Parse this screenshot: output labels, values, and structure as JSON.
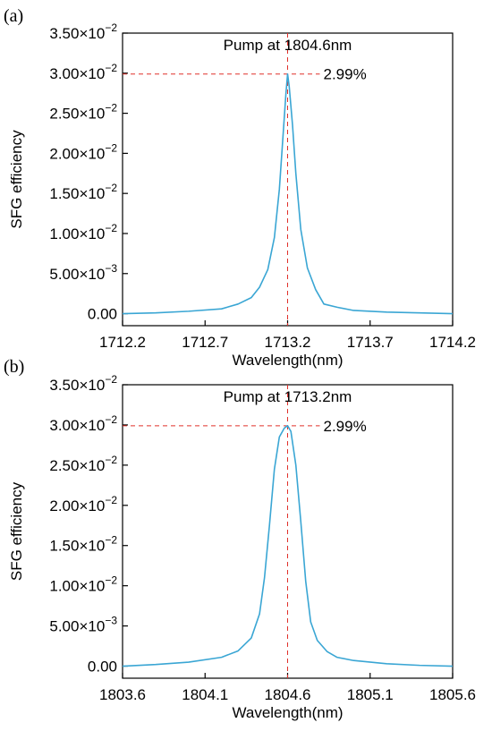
{
  "chart_data": [
    {
      "panel_label": "(a)",
      "type": "line",
      "xlabel": "Wavelength(nm)",
      "ylabel": "SFG efficiency",
      "xlim": [
        1712.2,
        1714.2
      ],
      "ylim": [
        -0.0015,
        0.035
      ],
      "x_ticks": [
        {
          "v": 1712.2,
          "label": "1712.2"
        },
        {
          "v": 1712.7,
          "label": "1712.7"
        },
        {
          "v": 1713.2,
          "label": "1713.2"
        },
        {
          "v": 1713.7,
          "label": "1713.7"
        },
        {
          "v": 1714.2,
          "label": "1714.2"
        }
      ],
      "y_ticks": [
        {
          "v": 0,
          "mant": "0.00",
          "exp": ""
        },
        {
          "v": 0.005,
          "mant": "5.00×10",
          "exp": "−3"
        },
        {
          "v": 0.01,
          "mant": "1.00×10",
          "exp": "−2"
        },
        {
          "v": 0.015,
          "mant": "1.50×10",
          "exp": "−2"
        },
        {
          "v": 0.02,
          "mant": "2.00×10",
          "exp": "−2"
        },
        {
          "v": 0.025,
          "mant": "2.50×10",
          "exp": "−2"
        },
        {
          "v": 0.03,
          "mant": "3.00×10",
          "exp": "−2"
        },
        {
          "v": 0.035,
          "mant": "3.50×10",
          "exp": "−2"
        }
      ],
      "annotation_title": "Pump at 1804.6nm",
      "peak_label": "2.99%",
      "peak": {
        "x": 1713.2,
        "y": 0.0299
      },
      "line_color": "#3aa6d4",
      "ref_color": "#e0302a",
      "series": [
        {
          "x": [
            1712.2,
            1712.4,
            1712.6,
            1712.8,
            1712.9,
            1712.98,
            1713.03,
            1713.08,
            1713.12,
            1713.15,
            1713.17,
            1713.19,
            1713.2,
            1713.21,
            1713.23,
            1713.25,
            1713.28,
            1713.32,
            1713.37,
            1713.42,
            1713.5,
            1713.6,
            1713.8,
            1714.0,
            1714.2
          ],
          "y": [
            0.0,
            0.0001,
            0.0003,
            0.0006,
            0.0012,
            0.002,
            0.0033,
            0.0055,
            0.0095,
            0.0155,
            0.0215,
            0.0275,
            0.0299,
            0.0283,
            0.0235,
            0.0175,
            0.0105,
            0.0057,
            0.003,
            0.0012,
            0.0008,
            0.0004,
            0.0002,
            0.0001,
            0.0
          ]
        }
      ]
    },
    {
      "panel_label": "(b)",
      "type": "line",
      "xlabel": "Wavelength(nm)",
      "ylabel": "SFG efficiency",
      "xlim": [
        1803.6,
        1805.6
      ],
      "ylim": [
        -0.0015,
        0.035
      ],
      "x_ticks": [
        {
          "v": 1803.6,
          "label": "1803.6"
        },
        {
          "v": 1804.1,
          "label": "1804.1"
        },
        {
          "v": 1804.6,
          "label": "1804.6"
        },
        {
          "v": 1805.1,
          "label": "1805.1"
        },
        {
          "v": 1805.6,
          "label": "1805.6"
        }
      ],
      "y_ticks": [
        {
          "v": 0,
          "mant": "0.00",
          "exp": ""
        },
        {
          "v": 0.005,
          "mant": "5.00×10",
          "exp": "−3"
        },
        {
          "v": 0.01,
          "mant": "1.00×10",
          "exp": "−2"
        },
        {
          "v": 0.015,
          "mant": "1.50×10",
          "exp": "−2"
        },
        {
          "v": 0.02,
          "mant": "2.00×10",
          "exp": "−2"
        },
        {
          "v": 0.025,
          "mant": "2.50×10",
          "exp": "−2"
        },
        {
          "v": 0.03,
          "mant": "3.00×10",
          "exp": "−2"
        },
        {
          "v": 0.035,
          "mant": "3.50×10",
          "exp": "−2"
        }
      ],
      "annotation_title": "Pump at 1713.2nm",
      "peak_label": "2.99%",
      "peak": {
        "x": 1804.6,
        "y": 0.0299
      },
      "line_color": "#3aa6d4",
      "ref_color": "#e0302a",
      "series": [
        {
          "x": [
            1803.6,
            1803.8,
            1804.0,
            1804.2,
            1804.3,
            1804.38,
            1804.43,
            1804.46,
            1804.49,
            1804.52,
            1804.55,
            1804.58,
            1804.6,
            1804.62,
            1804.65,
            1804.68,
            1804.71,
            1804.74,
            1804.78,
            1804.84,
            1804.9,
            1805.0,
            1805.2,
            1805.4,
            1805.6
          ],
          "y": [
            0.0,
            0.0002,
            0.0005,
            0.0011,
            0.0019,
            0.0035,
            0.0065,
            0.011,
            0.0175,
            0.0245,
            0.0285,
            0.0296,
            0.0299,
            0.0292,
            0.025,
            0.018,
            0.0105,
            0.0055,
            0.0032,
            0.0018,
            0.0011,
            0.0007,
            0.0003,
            0.0001,
            0.0
          ]
        }
      ]
    }
  ]
}
